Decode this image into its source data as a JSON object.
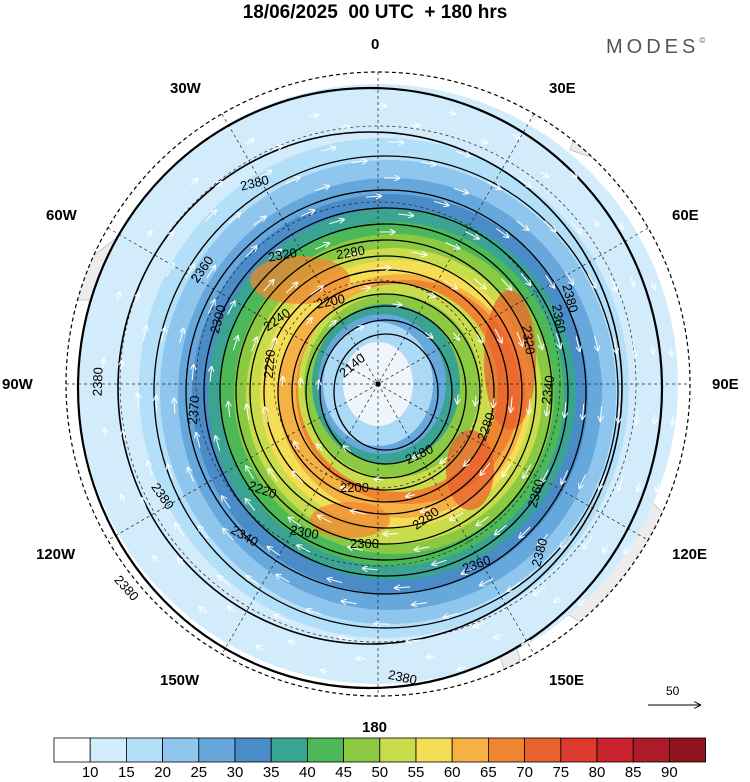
{
  "header": {
    "title": "18/06/2025  00 UTC  + 180 hrs",
    "brand": "MODES",
    "brand_mark": "©"
  },
  "map": {
    "projection": "south-polar-stereographic",
    "longitude_labels": {
      "top": "0",
      "bottom": "180",
      "left": "90W",
      "right": "90E",
      "upper_left_a": "30W",
      "upper_left_b": "60W",
      "upper_right_a": "30E",
      "upper_right_b": "60E",
      "lower_left_a": "120W",
      "lower_left_b": "150W",
      "lower_right_a": "120E",
      "lower_right_b": "150E"
    },
    "contour_labels": [
      "2380",
      "2360",
      "2380",
      "2380",
      "2360",
      "2320",
      "2280",
      "2240",
      "2200",
      "2300",
      "2220",
      "2370",
      "2140",
      "2320",
      "2340",
      "2380",
      "2280",
      "2180",
      "2200",
      "2220",
      "2280",
      "2300",
      "2300",
      "2340",
      "2360",
      "2380",
      "2360",
      "2380",
      "2380"
    ],
    "reference_vector": "50",
    "colors": {
      "land": "#ececec",
      "contour": "#000000",
      "vector": "#ffffff"
    }
  },
  "colorbar": {
    "labels": [
      "10",
      "15",
      "20",
      "25",
      "30",
      "35",
      "40",
      "45",
      "50",
      "55",
      "60",
      "65",
      "70",
      "75",
      "80",
      "85",
      "90"
    ],
    "colors": [
      "#ffffff",
      "#d2ecfb",
      "#b4dff8",
      "#8ec6ee",
      "#66a7dc",
      "#4a8cc7",
      "#3aa391",
      "#4cb858",
      "#8cc943",
      "#c9dc4c",
      "#f5de55",
      "#f6b144",
      "#f08531",
      "#e9612d",
      "#dc3a2c",
      "#c8232d",
      "#ad1a28",
      "#8f141e"
    ]
  }
}
